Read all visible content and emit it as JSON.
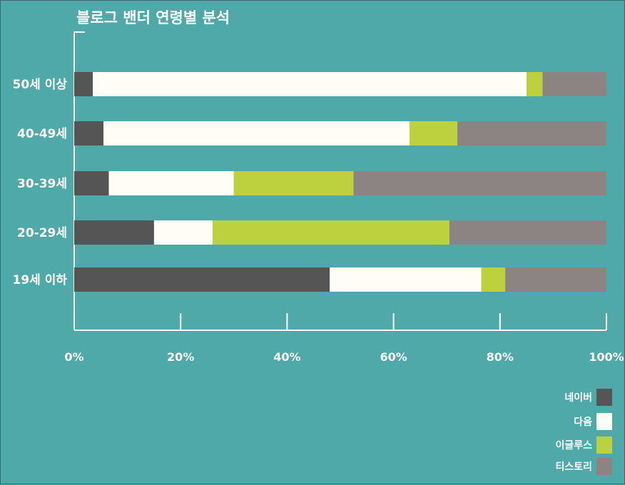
{
  "chart_data": {
    "type": "bar",
    "orientation": "horizontal",
    "stacked": true,
    "normalized": true,
    "title": "블로그 밴더 연령별 분석",
    "categories": [
      "50세 이상",
      "40-49세",
      "30-39세",
      "20-29세",
      "19세 이하"
    ],
    "series": [
      {
        "name": "네이버",
        "color": "#555555",
        "values": [
          3.5,
          5.5,
          6.5,
          15,
          48
        ]
      },
      {
        "name": "다음",
        "color": "#fffdf6",
        "values": [
          81.5,
          57.5,
          23.5,
          11,
          28.5
        ]
      },
      {
        "name": "이글루스",
        "color": "#bdd13e",
        "values": [
          3,
          9,
          22.5,
          44.5,
          4.5
        ]
      },
      {
        "name": "티스토리",
        "color": "#8c8482",
        "values": [
          12,
          28,
          47.5,
          29.5,
          19
        ]
      }
    ],
    "xticks": [
      "0%",
      "20%",
      "40%",
      "60%",
      "80%",
      "100%"
    ],
    "xlim": [
      0,
      100
    ],
    "legend_position": "bottom-right"
  }
}
